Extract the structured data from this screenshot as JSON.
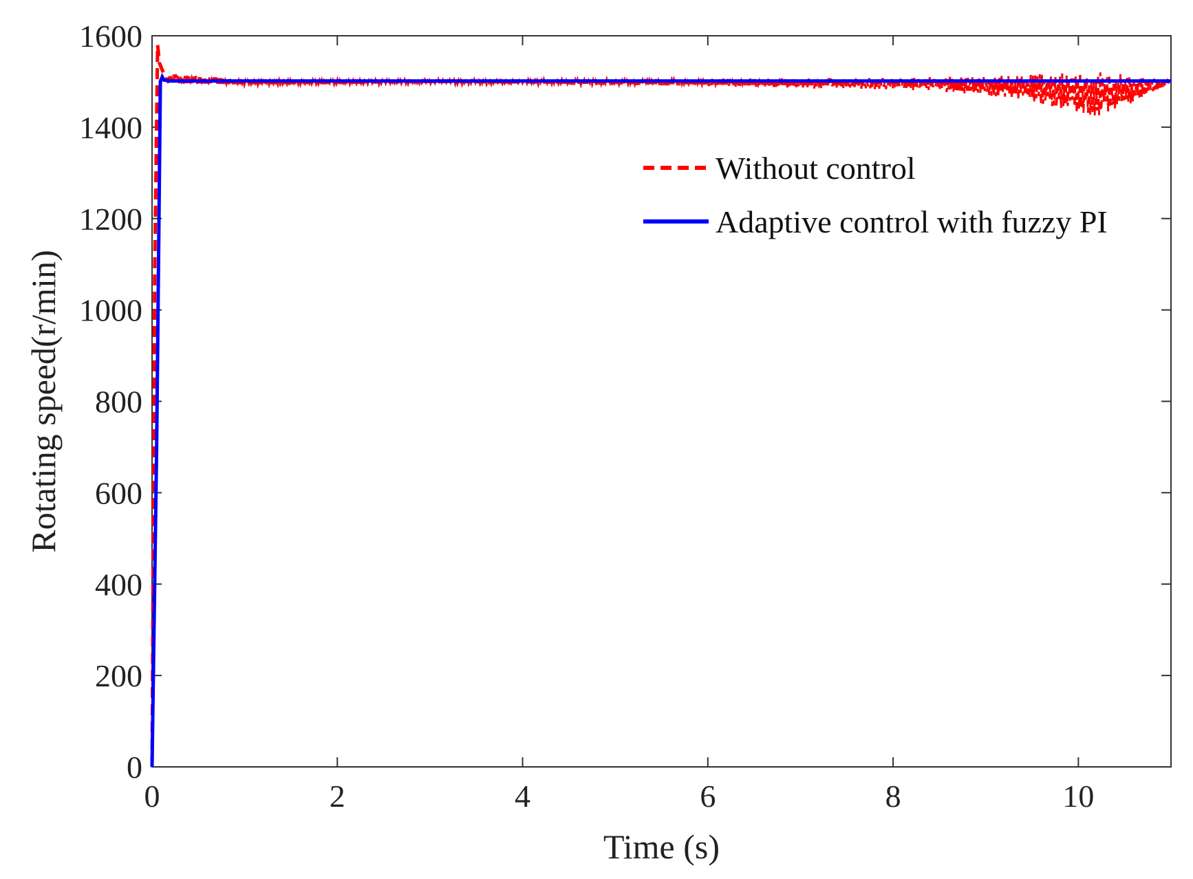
{
  "chart_data": {
    "type": "line",
    "title": "",
    "xlabel": "Time (s)",
    "ylabel": "Rotating speed(r/min)",
    "xlim": [
      0,
      11
    ],
    "ylim": [
      0,
      1600
    ],
    "xticks": [
      0,
      2,
      4,
      6,
      8,
      10
    ],
    "xtick_labels": [
      "0",
      "2",
      "4",
      "6",
      "8",
      "10"
    ],
    "yticks": [
      0,
      200,
      400,
      600,
      800,
      1000,
      1200,
      1400,
      1600
    ],
    "ytick_labels": [
      "0",
      "200",
      "400",
      "600",
      "800",
      "1000",
      "1200",
      "1400",
      "1600"
    ],
    "grid": false,
    "legend_position": "upper-right",
    "series": [
      {
        "name": "Without control",
        "color": "#ff0000",
        "style": "dashed",
        "x": [
          0,
          0.03,
          0.06,
          0.08,
          0.1,
          0.15,
          0.3,
          1.0,
          2.0,
          3.0,
          4.0,
          5.0,
          6.0,
          7.0,
          8.0,
          8.5,
          9.0,
          9.5,
          9.8,
          10.0,
          10.2,
          10.4,
          10.7,
          11.0
        ],
        "y": [
          0,
          1100,
          1580,
          1540,
          1530,
          1505,
          1500,
          1497,
          1498,
          1500,
          1499,
          1498,
          1497,
          1495,
          1497,
          1496,
          1492,
          1480,
          1465,
          1450,
          1440,
          1455,
          1480,
          1500
        ],
        "band_x": [
          0.1,
          1.0,
          3.0,
          5.0,
          6.0,
          7.0,
          8.0,
          8.5,
          9.0,
          9.5,
          9.8,
          10.0,
          10.2,
          10.4,
          10.7,
          11.0
        ],
        "band_max": [
          1520,
          1504,
          1504,
          1505,
          1506,
          1507,
          1508,
          1510,
          1512,
          1515,
          1518,
          1520,
          1522,
          1518,
          1510,
          1502
        ],
        "band_min": [
          1495,
          1492,
          1494,
          1492,
          1490,
          1485,
          1482,
          1478,
          1470,
          1455,
          1440,
          1425,
          1418,
          1435,
          1465,
          1498
        ]
      },
      {
        "name": "Adaptive control with fuzzy PI",
        "color": "#0000ff",
        "style": "solid",
        "x": [
          0,
          0.05,
          0.09,
          0.11,
          0.13,
          0.2,
          1,
          2,
          3,
          4,
          5,
          6,
          7,
          8,
          9,
          10,
          11
        ],
        "y": [
          0,
          700,
          1500,
          1510,
          1503,
          1501,
          1501,
          1501,
          1501,
          1501,
          1501,
          1501,
          1501,
          1501,
          1501,
          1501,
          1501
        ]
      }
    ]
  }
}
